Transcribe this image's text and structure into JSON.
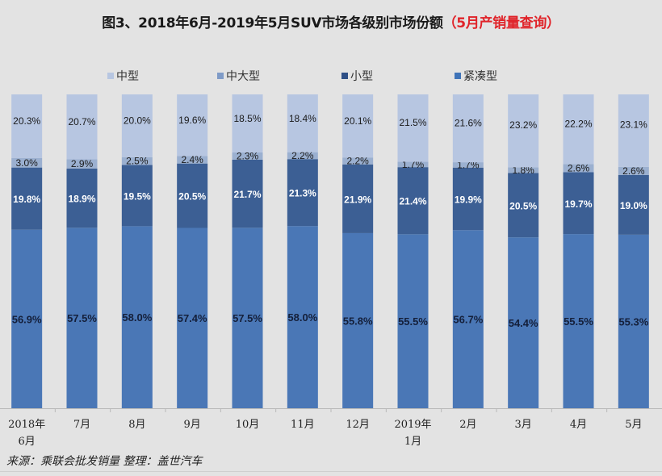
{
  "title": {
    "main": "图3、2018年6月-2019年5月SUV市场各级别市场份额",
    "highlight": "（5月产销量查询）"
  },
  "source": "来源：乘联会批发销量  整理：盖世汽车",
  "chart_data": {
    "type": "bar",
    "stacked": true,
    "percent": true,
    "title": "图3、2018年6月-2019年5月SUV市场各级别市场份额",
    "xlabel": "",
    "ylabel": "",
    "ylim": [
      0,
      100
    ],
    "grid": false,
    "legend_position": "top",
    "categories": [
      "2018年\n6月",
      "7月",
      "8月",
      "9月",
      "10月",
      "11月",
      "12月",
      "2019年\n1月",
      "2月",
      "3月",
      "4月",
      "5月"
    ],
    "series": [
      {
        "name": "紧凑型",
        "color": "#4a77b6",
        "label_color": "#141f3a",
        "values": [
          56.9,
          57.5,
          58.0,
          57.4,
          57.5,
          58.0,
          55.8,
          55.5,
          56.7,
          54.4,
          55.5,
          55.3
        ]
      },
      {
        "name": "小型",
        "color": "#3c5f94",
        "label_color": "#ffffff",
        "values": [
          19.8,
          18.9,
          19.5,
          20.5,
          21.7,
          21.3,
          21.9,
          21.4,
          19.9,
          20.5,
          19.7,
          19.0
        ]
      },
      {
        "name": "中大型",
        "color": "#9bb0d0",
        "label_color": "#1a1a1a",
        "values": [
          3.0,
          2.9,
          2.5,
          2.4,
          2.3,
          2.2,
          2.2,
          1.7,
          1.7,
          1.8,
          2.6,
          2.6
        ]
      },
      {
        "name": "中型",
        "color": "#b7c6e1",
        "label_color": "#1a1a1a",
        "values": [
          20.3,
          20.7,
          20.0,
          19.6,
          18.5,
          18.4,
          20.1,
          21.5,
          21.6,
          23.2,
          22.2,
          23.1
        ]
      }
    ],
    "legend_order": [
      "中型",
      "中大型",
      "小型",
      "紧凑型"
    ]
  }
}
